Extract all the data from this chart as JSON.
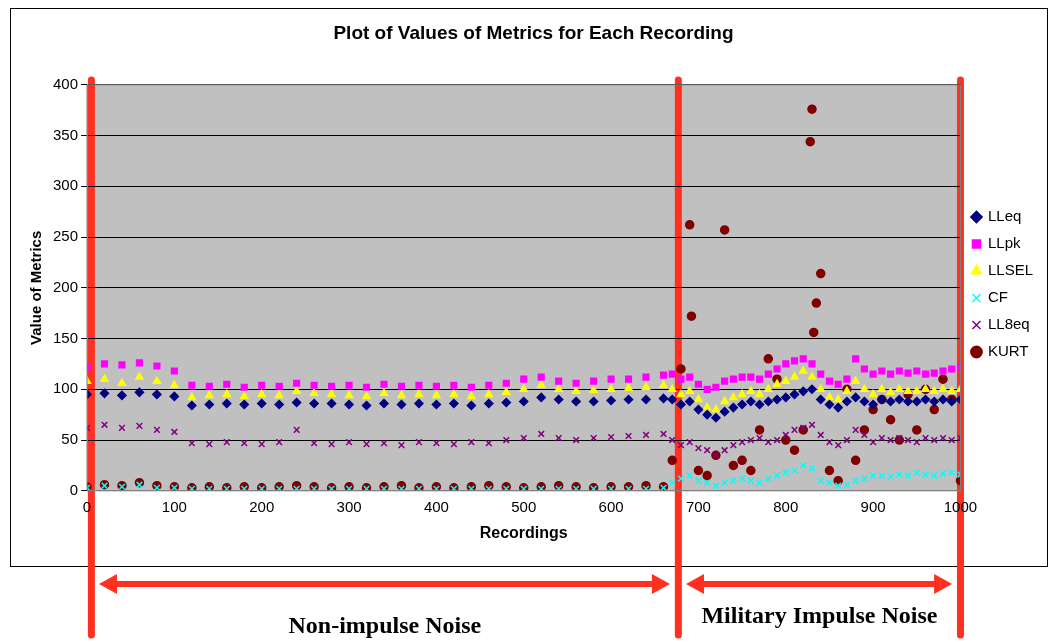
{
  "chart_data": {
    "type": "scatter",
    "title": "Plot of Values of Metrics for Each Recording",
    "xlabel": "Recordings",
    "ylabel": "Value of Metrics",
    "x": [
      0,
      20,
      40,
      60,
      80,
      100,
      120,
      140,
      160,
      180,
      200,
      220,
      240,
      260,
      280,
      300,
      320,
      340,
      360,
      380,
      400,
      420,
      440,
      460,
      480,
      500,
      520,
      540,
      560,
      580,
      600,
      620,
      640,
      660,
      670,
      680,
      690,
      700,
      710,
      720,
      730,
      740,
      750,
      760,
      770,
      780,
      790,
      800,
      810,
      820,
      830,
      840,
      850,
      860,
      870,
      880,
      890,
      900,
      910,
      920,
      930,
      940,
      950,
      960,
      970,
      980,
      990,
      1000
    ],
    "series": [
      {
        "name": "LLeq",
        "color": "#000080",
        "marker": "diamond",
        "values": [
          95,
          96,
          94,
          97,
          95,
          93,
          84,
          85,
          86,
          85,
          86,
          85,
          87,
          86,
          86,
          85,
          84,
          86,
          85,
          86,
          85,
          86,
          84,
          86,
          87,
          88,
          92,
          90,
          88,
          88,
          89,
          90,
          90,
          91,
          90,
          85,
          88,
          80,
          75,
          72,
          78,
          82,
          85,
          88,
          85,
          88,
          90,
          92,
          95,
          98,
          100,
          90,
          85,
          82,
          88,
          92,
          88,
          85,
          90,
          88,
          90,
          88,
          88,
          90,
          88,
          90,
          88,
          90
        ]
      },
      {
        "name": "LLpk",
        "color": "#ff00ff",
        "marker": "square",
        "values": [
          122,
          125,
          124,
          126,
          123,
          118,
          104,
          103,
          105,
          102,
          104,
          103,
          106,
          104,
          103,
          104,
          102,
          105,
          103,
          104,
          103,
          104,
          102,
          104,
          106,
          110,
          112,
          108,
          106,
          108,
          110,
          110,
          112,
          114,
          115,
          110,
          112,
          105,
          100,
          102,
          108,
          110,
          112,
          112,
          110,
          115,
          120,
          125,
          128,
          130,
          125,
          115,
          108,
          105,
          110,
          130,
          120,
          115,
          118,
          115,
          118,
          116,
          118,
          115,
          116,
          118,
          120,
          122
        ]
      },
      {
        "name": "LLSEL",
        "color": "#ffff00",
        "marker": "triangle",
        "values": [
          108,
          110,
          106,
          112,
          108,
          104,
          92,
          94,
          95,
          93,
          95,
          94,
          98,
          96,
          95,
          94,
          93,
          96,
          94,
          95,
          94,
          95,
          93,
          95,
          97,
          100,
          104,
          100,
          98,
          99,
          100,
          101,
          102,
          104,
          100,
          95,
          98,
          90,
          82,
          80,
          88,
          92,
          95,
          98,
          95,
          100,
          105,
          108,
          112,
          118,
          112,
          100,
          92,
          90,
          98,
          108,
          100,
          95,
          100,
          97,
          100,
          98,
          98,
          100,
          98,
          100,
          98,
          100
        ]
      },
      {
        "name": "CF",
        "color": "#00ffff",
        "marker": "cross",
        "values": [
          3,
          5,
          4,
          6,
          3,
          3,
          2,
          2,
          2,
          2,
          2,
          2,
          2,
          2,
          2,
          2,
          2,
          2,
          2,
          2,
          2,
          2,
          2,
          2,
          2,
          2,
          2,
          2,
          2,
          2,
          2,
          2,
          2,
          3,
          8,
          12,
          15,
          10,
          8,
          5,
          8,
          10,
          12,
          10,
          8,
          12,
          15,
          18,
          20,
          25,
          22,
          10,
          8,
          5,
          6,
          10,
          12,
          15,
          15,
          14,
          16,
          15,
          18,
          16,
          15,
          17,
          18,
          16
        ]
      },
      {
        "name": "LL8eq",
        "color": "#800080",
        "marker": "cross",
        "values": [
          62,
          65,
          62,
          64,
          60,
          58,
          47,
          46,
          48,
          47,
          46,
          48,
          60,
          47,
          46,
          48,
          46,
          47,
          45,
          48,
          47,
          46,
          48,
          47,
          50,
          52,
          56,
          52,
          50,
          52,
          53,
          54,
          55,
          56,
          50,
          45,
          48,
          42,
          40,
          35,
          40,
          45,
          48,
          50,
          52,
          48,
          50,
          55,
          60,
          62,
          65,
          55,
          48,
          45,
          50,
          60,
          55,
          48,
          52,
          50,
          52,
          50,
          48,
          52,
          50,
          52,
          50,
          52
        ]
      },
      {
        "name": "KURT",
        "color": "#800000",
        "marker": "circle",
        "x": [
          0,
          20,
          40,
          60,
          80,
          100,
          120,
          140,
          160,
          180,
          200,
          220,
          240,
          260,
          280,
          300,
          320,
          340,
          360,
          380,
          400,
          420,
          440,
          460,
          480,
          500,
          520,
          540,
          560,
          580,
          600,
          620,
          640,
          660,
          670,
          680,
          690,
          692,
          700,
          710,
          720,
          730,
          740,
          750,
          760,
          770,
          780,
          790,
          800,
          810,
          820,
          828,
          830,
          832,
          835,
          840,
          850,
          860,
          870,
          880,
          890,
          900,
          910,
          920,
          930,
          940,
          950,
          960,
          970,
          980,
          990,
          1000
        ],
        "values": [
          4,
          6,
          5,
          8,
          5,
          4,
          3,
          4,
          3,
          4,
          3,
          4,
          5,
          4,
          3,
          4,
          3,
          4,
          5,
          3,
          4,
          3,
          4,
          5,
          4,
          3,
          4,
          5,
          4,
          3,
          4,
          4,
          5,
          4,
          30,
          120,
          262,
          172,
          20,
          15,
          35,
          257,
          25,
          30,
          20,
          60,
          130,
          110,
          50,
          40,
          60,
          344,
          376,
          156,
          185,
          214,
          20,
          10,
          100,
          30,
          60,
          80,
          90,
          70,
          50,
          95,
          60,
          100,
          80,
          110,
          90,
          10
        ]
      }
    ],
    "xlim": [
      0,
      1000
    ],
    "xticks": [
      0,
      100,
      200,
      300,
      400,
      500,
      600,
      700,
      800,
      900,
      1000
    ],
    "ylim": [
      0,
      400
    ],
    "yticks": [
      0,
      50,
      100,
      150,
      200,
      250,
      300,
      350,
      400
    ],
    "grid": "y",
    "legend": "right",
    "ref_lines": [
      {
        "axis": "x",
        "value": 5,
        "color": "#ff3020"
      },
      {
        "axis": "x",
        "value": 677,
        "color": "#ff3020"
      },
      {
        "axis": "x",
        "value": 1000,
        "color": "#ff3020"
      }
    ],
    "annotations": [
      "Non-impulse Noise",
      "Military Impulse Noise"
    ]
  }
}
